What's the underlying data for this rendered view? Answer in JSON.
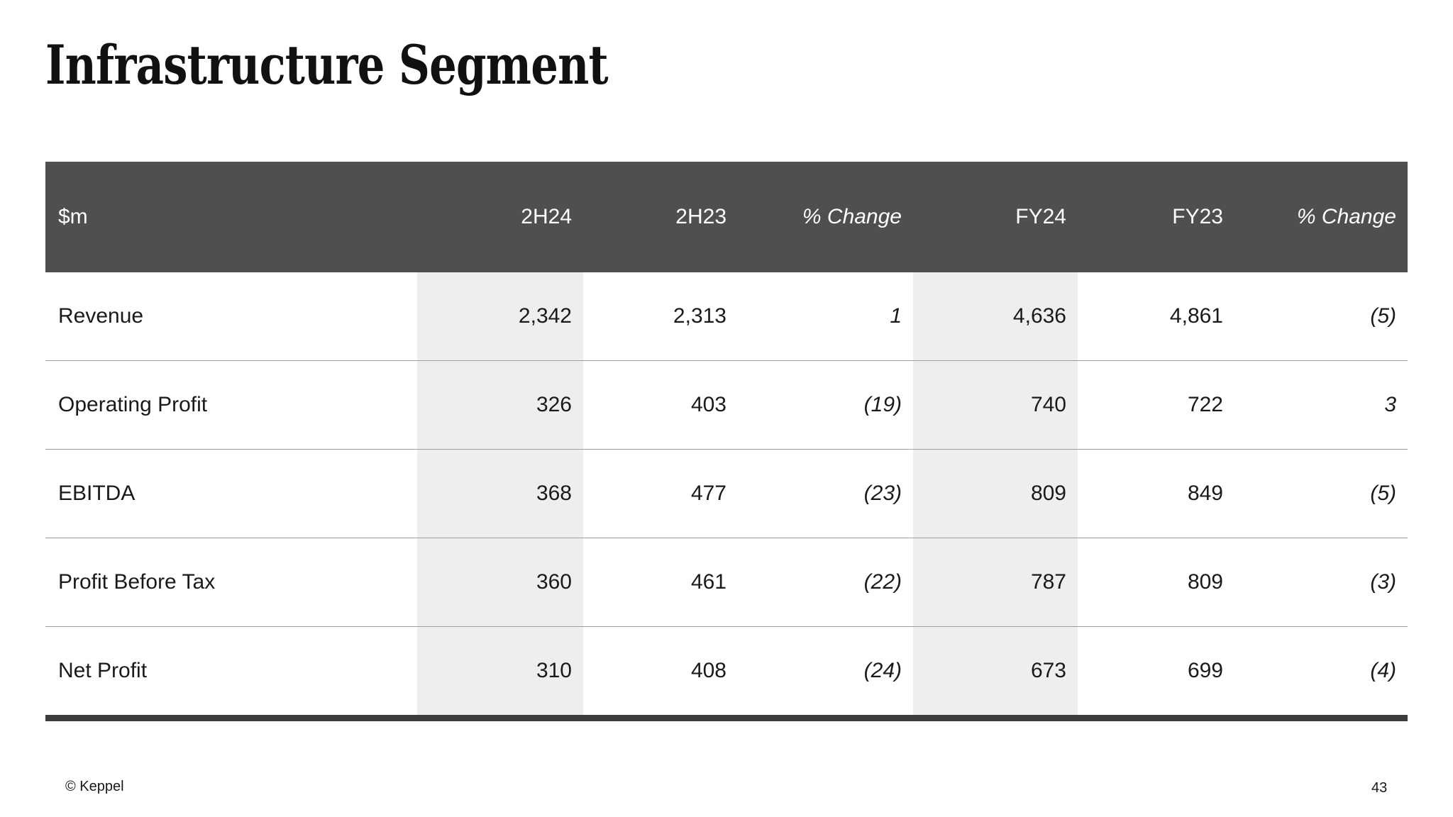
{
  "slide": {
    "title": "Infrastructure Segment",
    "footer": {
      "copyright": "© Keppel",
      "page_number": "43"
    }
  },
  "table": {
    "unit_label": "$m",
    "columns": [
      "2H24",
      "2H23",
      "% Change",
      "FY24",
      "FY23",
      "% Change"
    ],
    "rows": [
      {
        "label": "Revenue",
        "values": [
          "2,342",
          "2,313",
          "1",
          "4,636",
          "4,861",
          "(5)"
        ]
      },
      {
        "label": "Operating Profit",
        "values": [
          "326",
          "403",
          "(19)",
          "740",
          "722",
          "3"
        ]
      },
      {
        "label": "EBITDA",
        "values": [
          "368",
          "477",
          "(23)",
          "809",
          "849",
          "(5)"
        ]
      },
      {
        "label": "Profit Before Tax",
        "values": [
          "360",
          "461",
          "(22)",
          "787",
          "809",
          "(3)"
        ]
      },
      {
        "label": "Net Profit",
        "values": [
          "310",
          "408",
          "(24)",
          "673",
          "699",
          "(4)"
        ]
      }
    ]
  },
  "colors": {
    "header_bg": "#4f4f4f",
    "header_text": "#ffffff",
    "shaded_column_bg": "#eeeeee",
    "row_divider": "#9e9e9e",
    "bottom_border": "#3d3d3d",
    "body_text": "#1a1a1a"
  }
}
